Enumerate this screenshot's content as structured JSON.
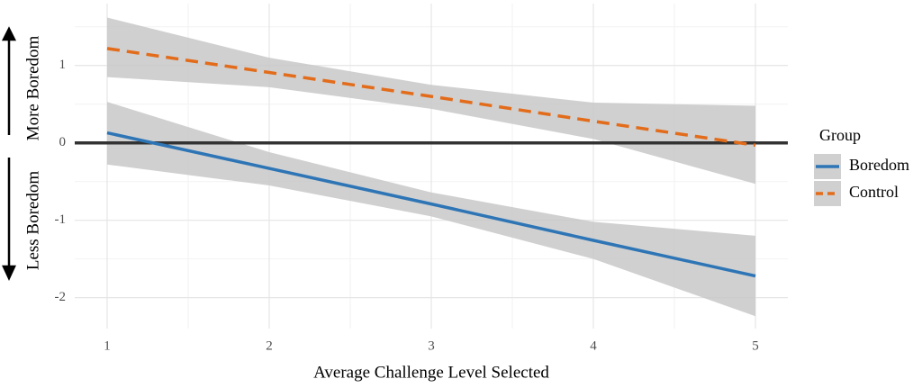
{
  "chart_data": {
    "type": "line",
    "x_label": "Average Challenge Level Selected",
    "y_label_upper": "More Boredom",
    "y_label_lower": "Less Boredom",
    "legend_title": "Group",
    "x": [
      1,
      2,
      3,
      4,
      5
    ],
    "series": [
      {
        "name": "Boredom",
        "color": "#2e75b6",
        "dash": false,
        "values": [
          0.13,
          -0.33,
          -0.79,
          -1.26,
          -1.72
        ],
        "lower": [
          -0.28,
          -0.55,
          -0.95,
          -1.5,
          -2.24
        ],
        "upper": [
          0.53,
          -0.12,
          -0.64,
          -1.02,
          -1.2
        ]
      },
      {
        "name": "Control",
        "color": "#e36c1b",
        "dash": true,
        "values": [
          1.22,
          0.91,
          0.6,
          0.28,
          -0.03
        ],
        "lower": [
          0.85,
          0.72,
          0.44,
          0.05,
          -0.53
        ],
        "upper": [
          1.62,
          1.1,
          0.75,
          0.52,
          0.48
        ]
      }
    ],
    "ribbon_color": "#c8c8c8",
    "hline": 0,
    "xlim": [
      0.8,
      5.2
    ],
    "ylim": [
      -2.4,
      1.8
    ],
    "xticks": [
      1,
      2,
      3,
      4,
      5
    ],
    "yticks": [
      -2,
      -1,
      0,
      1
    ],
    "xminorticks": [
      1.5,
      2.5,
      3.5,
      4.5
    ],
    "yminorticks": [
      -1.5,
      -0.5,
      0.5,
      1.5
    ],
    "grid": true,
    "legend_position": "right"
  }
}
